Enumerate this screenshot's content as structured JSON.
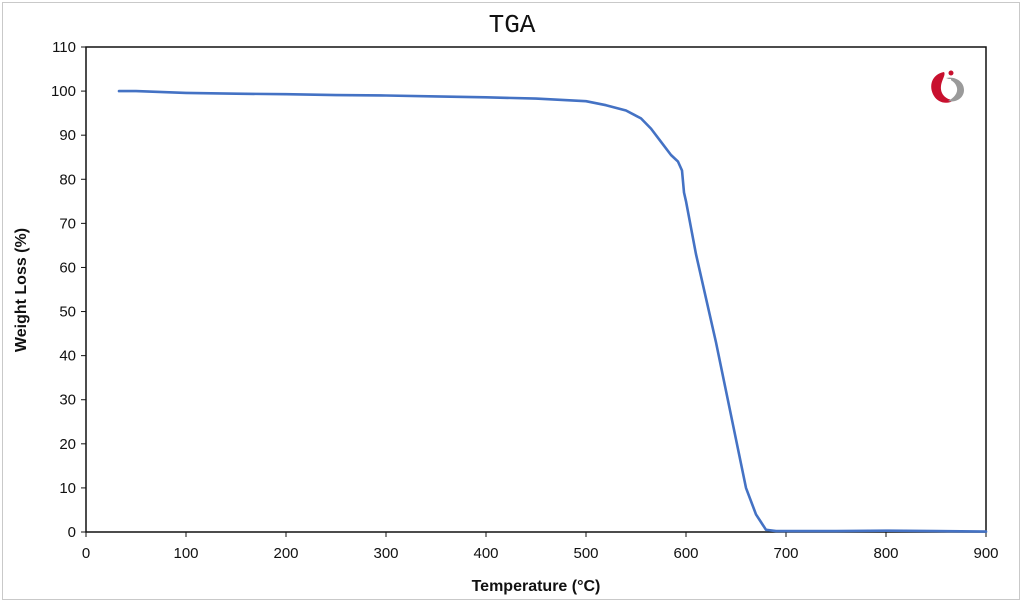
{
  "chart_data": {
    "type": "line",
    "title": "TGA",
    "xlabel": "Temperature (°C)",
    "ylabel": "Weight Loss (%)",
    "xlim": [
      0,
      900
    ],
    "ylim": [
      0,
      110
    ],
    "xticks": [
      0,
      100,
      200,
      300,
      400,
      500,
      600,
      700,
      800,
      900
    ],
    "yticks": [
      0,
      10,
      20,
      30,
      40,
      50,
      60,
      70,
      80,
      90,
      100,
      110
    ],
    "grid": false,
    "series_color": "#4472C4",
    "series": [
      {
        "x": [
          33,
          50,
          100,
          150,
          200,
          250,
          300,
          350,
          400,
          450,
          500,
          520,
          540,
          555,
          565,
          575,
          585,
          592,
          596,
          598,
          600,
          605,
          610,
          620,
          630,
          640,
          650,
          660,
          670,
          680,
          690,
          700,
          750,
          800,
          850,
          900
        ],
        "y": [
          100,
          100,
          99.6,
          99.4,
          99.3,
          99.1,
          99,
          98.8,
          98.6,
          98.3,
          97.7,
          96.8,
          95.6,
          93.8,
          91.5,
          88.5,
          85.5,
          84,
          82,
          77,
          75,
          69,
          63,
          53,
          43,
          32,
          21,
          10,
          4,
          0.5,
          0.2,
          0.2,
          0.2,
          0.3,
          0.2,
          0.1
        ]
      }
    ]
  },
  "logo": {
    "icon": "company-logo-icon",
    "red": "#c8102e",
    "grey": "#9a9a9a"
  }
}
